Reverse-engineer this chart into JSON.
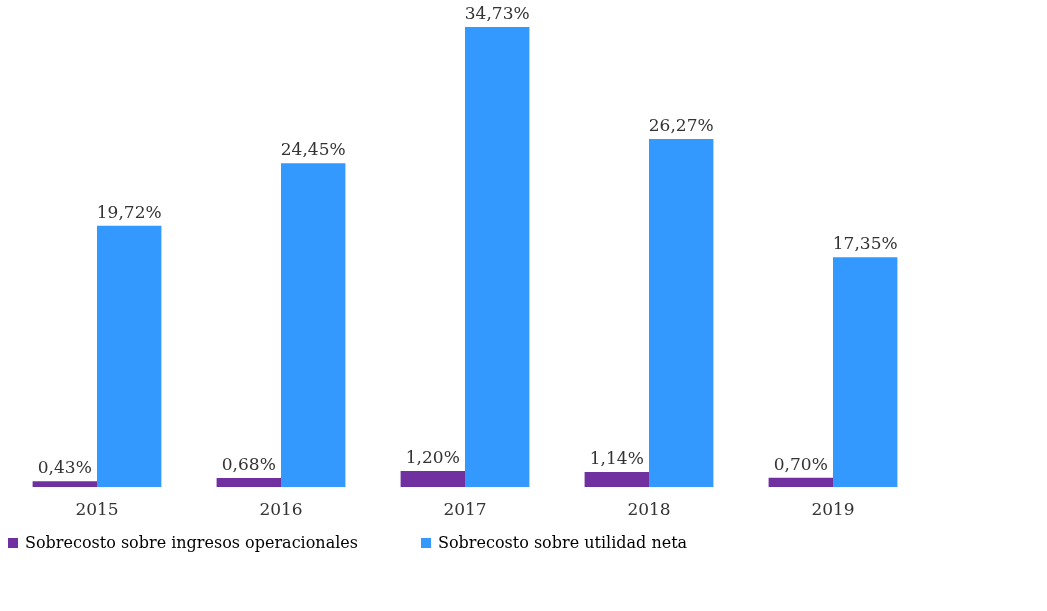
{
  "chart_data": {
    "type": "bar",
    "categories": [
      "2015",
      "2016",
      "2017",
      "2018",
      "2019"
    ],
    "series": [
      {
        "name": "Sobrecosto sobre ingresos operacionales",
        "color": "#7030a0",
        "values": [
          0.43,
          0.68,
          1.2,
          1.14,
          0.7
        ],
        "value_labels": [
          "0,43%",
          "0,68%",
          "1,20%",
          "1,14%",
          "0,70%"
        ]
      },
      {
        "name": "Sobrecosto sobre utilidad neta",
        "color": "#3399ff",
        "values": [
          19.72,
          24.45,
          34.73,
          26.27,
          17.35
        ],
        "value_labels": [
          "19,72%",
          "24,45%",
          "34,73%",
          "26,27%",
          "17,35%"
        ]
      }
    ],
    "legend": "bottom",
    "grid": false
  }
}
